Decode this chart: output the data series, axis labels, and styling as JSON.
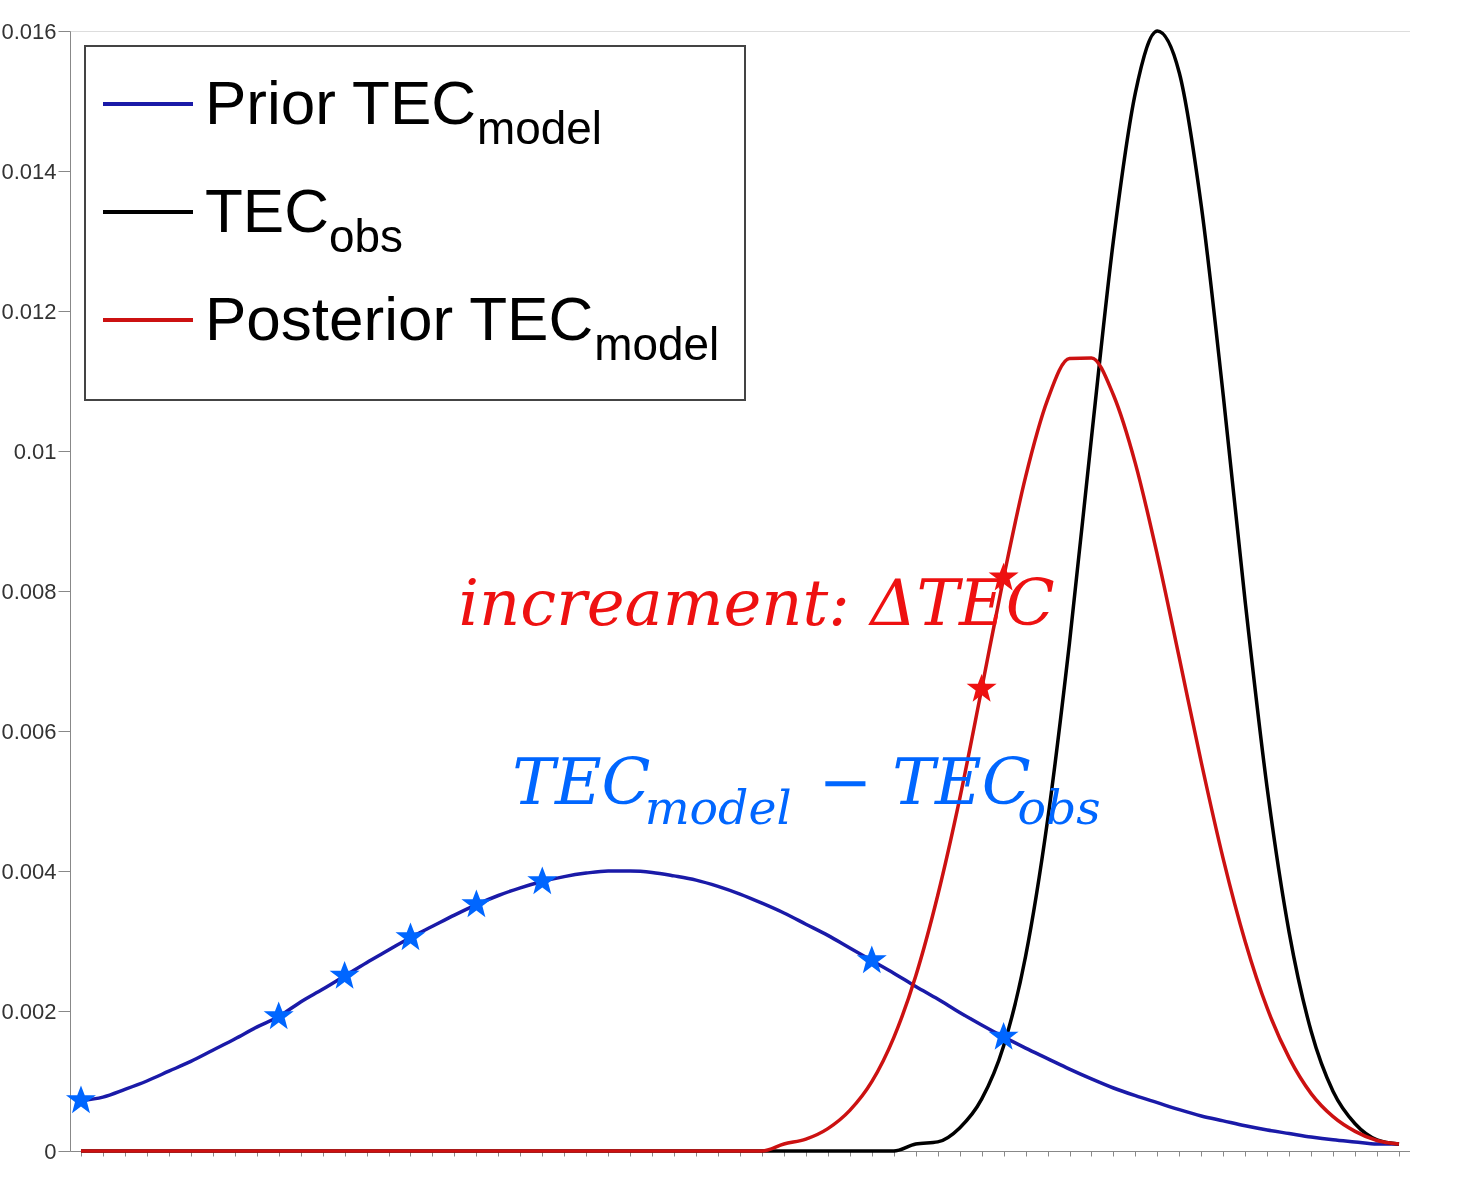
{
  "chart_data": {
    "type": "line",
    "categories": [
      null,
      null,
      null,
      null,
      null,
      null,
      null,
      null,
      null,
      null,
      null,
      null,
      null,
      null,
      null,
      null,
      null,
      null,
      null,
      null,
      null,
      null,
      null,
      null,
      null,
      null,
      null,
      null,
      null,
      null,
      null,
      null,
      null,
      null,
      null,
      null,
      null,
      null,
      null,
      null,
      null,
      null,
      null,
      null,
      null,
      null,
      null,
      null,
      null,
      null,
      null,
      null,
      null,
      null,
      null,
      null,
      null,
      null,
      null,
      null,
      null
    ],
    "series": [
      {
        "name": "Prior TEC$_{model}$",
        "color": "#1a1aa8",
        "values": [
          0.00072,
          0.00077,
          0.00088,
          0.001,
          0.00114,
          0.00128,
          0.00144,
          0.0016,
          0.00177,
          0.00192,
          0.00213,
          0.00231,
          0.0025,
          0.00269,
          0.00287,
          0.00305,
          0.00321,
          0.00337,
          0.00352,
          0.00365,
          0.00376,
          0.00385,
          0.00392,
          0.00397,
          0.004,
          0.004,
          0.00398,
          0.00393,
          0.00387,
          0.00378,
          0.00367,
          0.00354,
          0.0034,
          0.00324,
          0.00308,
          0.0029,
          0.00272,
          0.00254,
          0.00235,
          0.00217,
          0.00198,
          0.0018,
          0.00163,
          0.00147,
          0.00132,
          0.00117,
          0.00103,
          0.0009,
          0.00079,
          0.00069,
          0.00059,
          0.0005,
          0.00043,
          0.00036,
          0.0003,
          0.00025,
          0.0002,
          0.00016,
          0.00013,
          0.0001,
          0.0001
        ]
      },
      {
        "name": "TEC$_{obs}$",
        "color": "#000000",
        "values": [
          0,
          0,
          0,
          0,
          0,
          0,
          0,
          0,
          0,
          0,
          0,
          0,
          0,
          0,
          0,
          0,
          0,
          0,
          0,
          0,
          0,
          0,
          0,
          0,
          0,
          0,
          0,
          0,
          0,
          0,
          0,
          0,
          0,
          0,
          0,
          0,
          0,
          0,
          0.0001,
          0.00013,
          0.00033,
          0.00074,
          0.0015,
          0.00278,
          0.00472,
          0.00726,
          0.01019,
          0.01301,
          0.01512,
          0.016,
          0.0154,
          0.0135,
          0.01079,
          0.00784,
          0.00518,
          0.00312,
          0.00171,
          0.00085,
          0.00039,
          0.00016,
          0.0001
        ]
      },
      {
        "name": "Posterior TEC$_{model}$",
        "color": "#cc1111",
        "values": [
          0,
          0,
          0,
          0,
          0,
          0,
          0,
          0,
          0,
          0,
          0,
          0,
          0,
          0,
          0,
          0,
          0,
          0,
          0,
          0,
          0,
          0,
          0,
          0,
          0,
          0,
          0,
          0,
          0,
          0,
          0,
          0,
          0.0001,
          0.00017,
          0.00032,
          0.00058,
          0.00099,
          0.00162,
          0.0025,
          0.00365,
          0.00503,
          0.0066,
          0.00819,
          0.00963,
          0.01073,
          0.01132,
          0.01133,
          0.0108,
          0.00982,
          0.00851,
          0.00704,
          0.00555,
          0.00417,
          0.00299,
          0.00204,
          0.00133,
          0.00082,
          0.00049,
          0.00028,
          0.00015,
          0.0001
        ]
      },
      {
        "type": "scatter",
        "marker": "star",
        "color": "#0066ff",
        "values": [
          0.00072,
          null,
          null,
          null,
          null,
          null,
          null,
          null,
          null,
          0.00192,
          null,
          null,
          0.0025,
          null,
          null,
          0.00305,
          null,
          null,
          0.00352,
          null,
          null,
          0.00385,
          null,
          null,
          null,
          null,
          null,
          null,
          null,
          null,
          null,
          null,
          null,
          null,
          null,
          null,
          0.00272,
          null,
          null,
          null,
          null,
          null,
          0.00163,
          null,
          null,
          null,
          null,
          null,
          null,
          null,
          null,
          null,
          null,
          null,
          null,
          null,
          null,
          null,
          null,
          null,
          null
        ]
      },
      {
        "type": "scatter",
        "marker": "star",
        "color": "#ee1111",
        "values": [
          null,
          null,
          null,
          null,
          null,
          null,
          null,
          null,
          null,
          null,
          null,
          null,
          null,
          null,
          null,
          null,
          null,
          null,
          null,
          null,
          null,
          null,
          null,
          null,
          null,
          null,
          null,
          null,
          null,
          null,
          null,
          null,
          null,
          null,
          null,
          null,
          null,
          null,
          null,
          null,
          null,
          0.0066,
          0.00819,
          null,
          null,
          null,
          null,
          null,
          null,
          null,
          null,
          null,
          null,
          null,
          null,
          null,
          null,
          null,
          null,
          null,
          null
        ]
      }
    ],
    "ylim": [
      0,
      0.016
    ],
    "yticks": [
      0,
      0.002,
      0.004,
      0.006,
      0.008,
      0.01,
      0.012,
      0.014,
      0.016
    ],
    "tick_labels": "y",
    "grid": false,
    "legend": "top left",
    "marker": "none",
    "line_style": "solid",
    "annotations": [
      "increament: ΔTEC",
      "TEC$_{model}$ − TEC$_{obs}$"
    ]
  }
}
